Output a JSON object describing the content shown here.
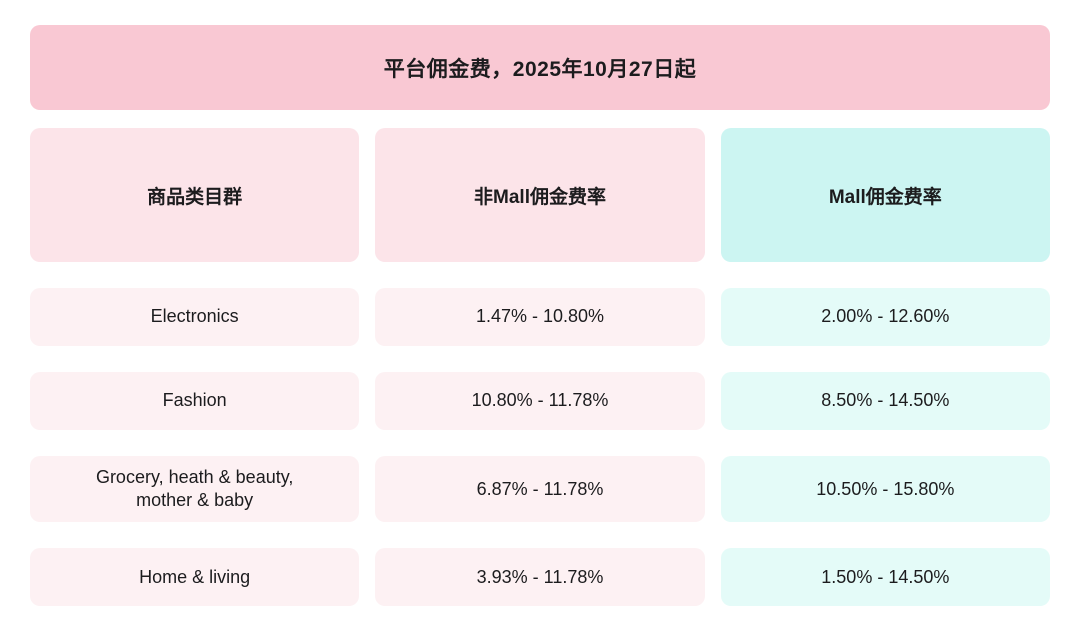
{
  "title": {
    "text": "平台佣金费，2025年10月27日起"
  },
  "table": {
    "headers": {
      "category": "商品类目群",
      "non_mall": "非Mall佣金费率",
      "mall": "Mall佣金费率"
    },
    "rows": [
      {
        "category": "Electronics",
        "non_mall": "1.47% - 10.80%",
        "mall": "2.00% - 12.60%"
      },
      {
        "category": "Fashion",
        "non_mall": "10.80% - 11.78%",
        "mall": "8.50% - 14.50%"
      },
      {
        "category": "Grocery, heath & beauty, mother & baby",
        "non_mall": "6.87% - 11.78%",
        "mall": "10.50% - 15.80%"
      },
      {
        "category": "Home & living",
        "non_mall": "3.93% - 11.78%",
        "mall": "1.50% - 14.50%"
      }
    ]
  },
  "colors": {
    "banner_pink": "#f9c8d3",
    "header_pink": "#fce4e9",
    "header_cyan": "#ccf5f2",
    "cell_pink": "#fdf1f3",
    "cell_cyan": "#e4fbf8",
    "text_dark": "#1c1c1e",
    "page_bg": "#ffffff"
  },
  "chart_data": {
    "type": "table",
    "title": "平台佣金费，2025年10月27日起",
    "columns": [
      "商品类目群",
      "非Mall佣金费率",
      "Mall佣金费率"
    ],
    "rows": [
      [
        "Electronics",
        "1.47% - 10.80%",
        "2.00% - 12.60%"
      ],
      [
        "Fashion",
        "10.80% - 11.78%",
        "8.50% - 14.50%"
      ],
      [
        "Grocery, heath & beauty, mother & baby",
        "6.87% - 11.78%",
        "10.50% - 15.80%"
      ],
      [
        "Home & living",
        "3.93% - 11.78%",
        "1.50% - 14.50%"
      ]
    ],
    "legend_position": "none",
    "grid": false
  }
}
